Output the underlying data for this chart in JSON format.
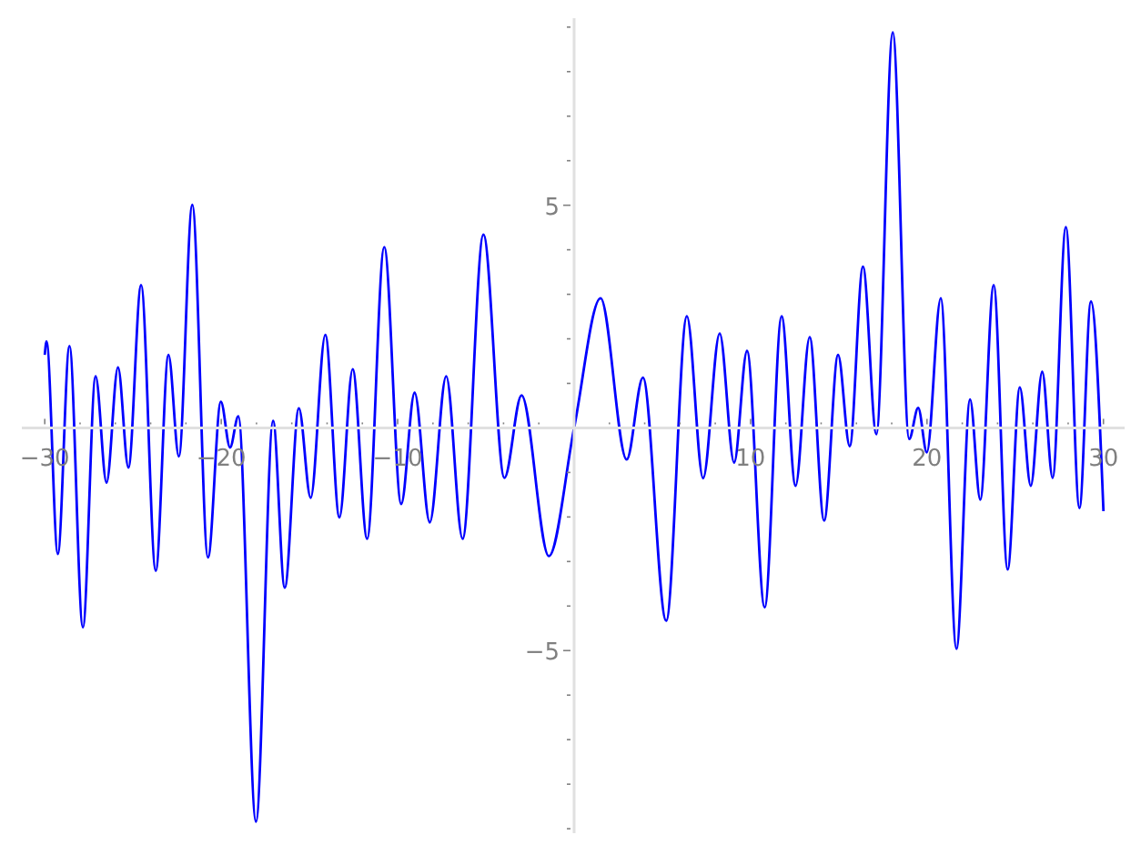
{
  "chart_data": {
    "type": "line",
    "line_style": "solid",
    "marker": "none",
    "xlim": [
      -31.3,
      31.2
    ],
    "ylim": [
      -9.1,
      9.2
    ],
    "xticks": [
      {
        "value": -30,
        "label": "−30"
      },
      {
        "value": -28,
        "label": null
      },
      {
        "value": -26,
        "label": null
      },
      {
        "value": -24,
        "label": null
      },
      {
        "value": -22,
        "label": null
      },
      {
        "value": -20,
        "label": "−20"
      },
      {
        "value": -18,
        "label": null
      },
      {
        "value": -16,
        "label": null
      },
      {
        "value": -14,
        "label": null
      },
      {
        "value": -12,
        "label": null
      },
      {
        "value": -10,
        "label": "−10"
      },
      {
        "value": -8,
        "label": null
      },
      {
        "value": -6,
        "label": null
      },
      {
        "value": -4,
        "label": null
      },
      {
        "value": -2,
        "label": null
      },
      {
        "value": 2,
        "label": null
      },
      {
        "value": 4,
        "label": null
      },
      {
        "value": 6,
        "label": null
      },
      {
        "value": 8,
        "label": null
      },
      {
        "value": 10,
        "label": "10"
      },
      {
        "value": 12,
        "label": null
      },
      {
        "value": 14,
        "label": null
      },
      {
        "value": 16,
        "label": null
      },
      {
        "value": 18,
        "label": null
      },
      {
        "value": 20,
        "label": "20"
      },
      {
        "value": 22,
        "label": null
      },
      {
        "value": 24,
        "label": null
      },
      {
        "value": 26,
        "label": null
      },
      {
        "value": 28,
        "label": null
      },
      {
        "value": 30,
        "label": "30"
      }
    ],
    "yticks": [
      {
        "value": -9,
        "label": null
      },
      {
        "value": -8,
        "label": null
      },
      {
        "value": -7,
        "label": null
      },
      {
        "value": -6,
        "label": null
      },
      {
        "value": -5,
        "label": "−5"
      },
      {
        "value": -4,
        "label": null
      },
      {
        "value": -3,
        "label": null
      },
      {
        "value": -2,
        "label": null
      },
      {
        "value": -1,
        "label": null
      },
      {
        "value": 1,
        "label": null
      },
      {
        "value": 2,
        "label": null
      },
      {
        "value": 3,
        "label": null
      },
      {
        "value": 4,
        "label": null
      },
      {
        "value": 5,
        "label": "5"
      },
      {
        "value": 6,
        "label": null
      },
      {
        "value": 7,
        "label": null
      },
      {
        "value": 8,
        "label": null
      },
      {
        "value": 9,
        "label": null
      }
    ],
    "series": [
      {
        "color": "#0000ff",
        "x": [
          -30,
          -29.9,
          -29.26,
          -28.6,
          -27.84,
          -27.12,
          -26.5,
          -25.85,
          -25.26,
          -24.54,
          -23.71,
          -22.99,
          -22.4,
          -21.64,
          -20.75,
          -20.02,
          -19.5,
          -19.03,
          -18.03,
          -17.06,
          -16.4,
          -15.6,
          -14.93,
          -14.1,
          -13.3,
          -12.55,
          -11.73,
          -10.76,
          -9.8,
          -9.04,
          -8.18,
          -7.25,
          -6.32,
          -5.14,
          -3.95,
          -2.98,
          -1.43,
          0,
          1.5,
          2.98,
          3.9,
          5.22,
          6.39,
          7.31,
          8.25,
          9.07,
          9.8,
          10.8,
          11.76,
          12.55,
          13.35,
          14.17,
          14.96,
          15.62,
          16.37,
          17.13,
          18.06,
          18.99,
          19.5,
          19.99,
          20.78,
          21.67,
          22.44,
          23.02,
          23.78,
          24.57,
          25.26,
          25.88,
          26.53,
          27.12,
          27.87,
          28.64,
          29.29,
          30
        ],
        "values": [
          1.64,
          1.94,
          -2.83,
          1.84,
          -4.48,
          1.16,
          -1.23,
          1.36,
          -0.89,
          3.21,
          -3.21,
          1.64,
          -0.64,
          5.01,
          -2.91,
          0.59,
          -0.44,
          0.26,
          -8.84,
          0.16,
          -3.59,
          0.44,
          -1.57,
          2.09,
          -2.01,
          1.32,
          -2.49,
          4.06,
          -1.71,
          0.79,
          -2.12,
          1.16,
          -2.49,
          4.34,
          -1.12,
          0.73,
          -2.88,
          0.0,
          2.91,
          -0.71,
          1.13,
          -4.33,
          2.51,
          -1.13,
          2.12,
          -0.78,
          1.73,
          -4.03,
          2.51,
          -1.3,
          2.04,
          -2.08,
          1.64,
          -0.41,
          3.62,
          -0.14,
          8.88,
          -0.25,
          0.45,
          -0.55,
          2.91,
          -4.96,
          0.64,
          -1.61,
          3.21,
          -3.18,
          0.91,
          -1.3,
          1.26,
          -1.12,
          4.51,
          -1.8,
          2.84,
          -1.87
        ]
      }
    ]
  }
}
